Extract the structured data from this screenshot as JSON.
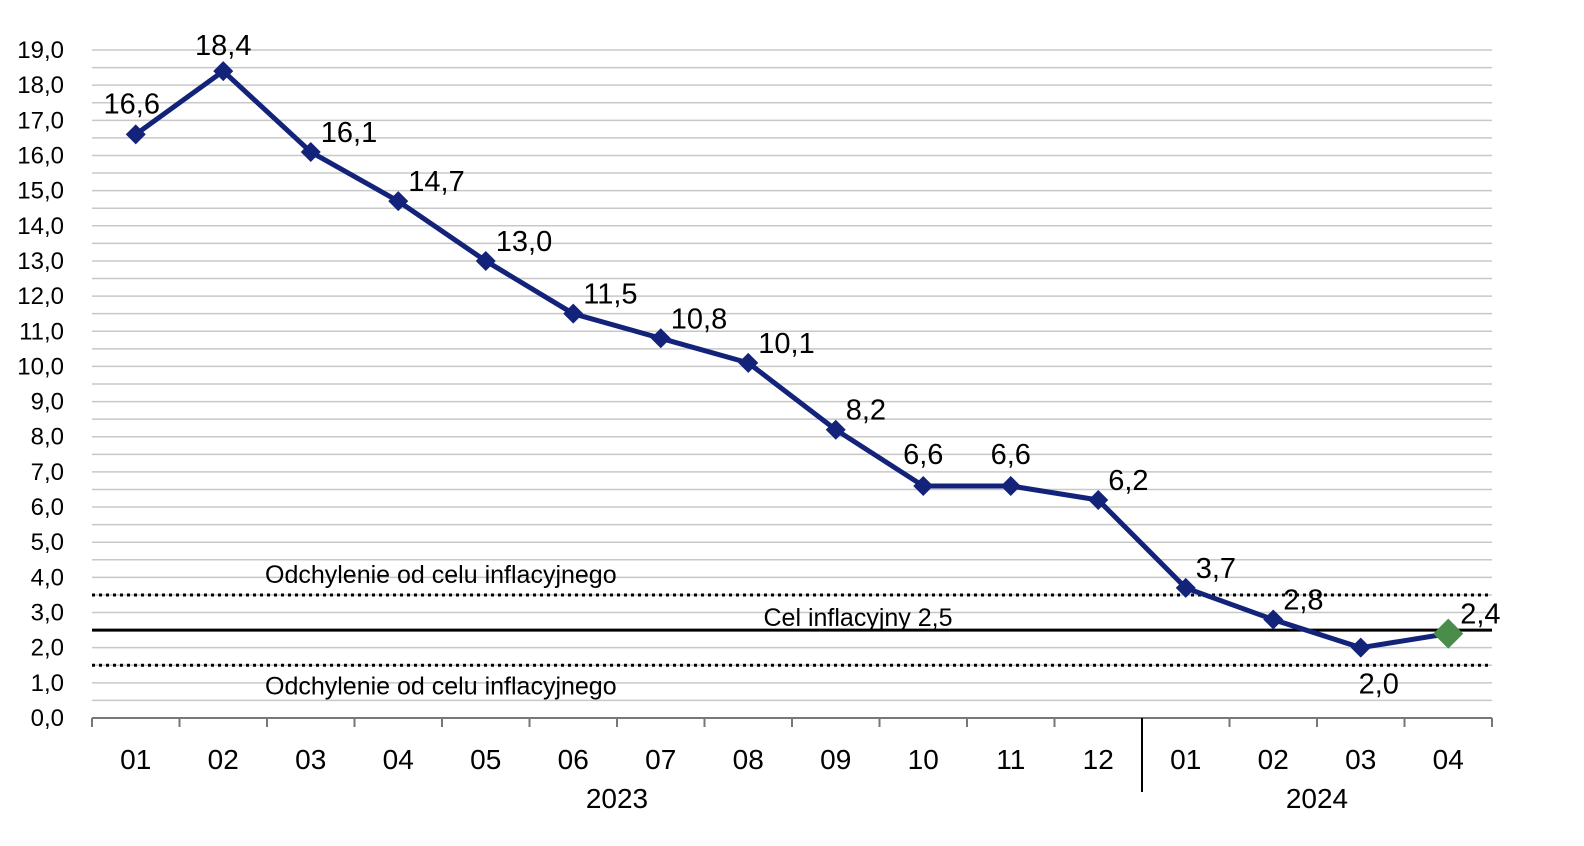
{
  "chart_data": {
    "type": "line",
    "x_months": [
      "01",
      "02",
      "03",
      "04",
      "05",
      "06",
      "07",
      "08",
      "09",
      "10",
      "11",
      "12",
      "01",
      "02",
      "03",
      "04"
    ],
    "x_years": [
      {
        "label": "2023",
        "from": 0,
        "to": 11
      },
      {
        "label": "2024",
        "from": 12,
        "to": 15
      }
    ],
    "values": [
      16.6,
      18.4,
      16.1,
      14.7,
      13.0,
      11.5,
      10.8,
      10.1,
      8.2,
      6.6,
      6.6,
      6.2,
      3.7,
      2.8,
      2.0,
      2.4
    ],
    "value_labels": [
      "16,6",
      "18,4",
      "16,1",
      "14,7",
      "13,0",
      "11,5",
      "10,8",
      "10,1",
      "8,2",
      "6,6",
      "6,6",
      "6,2",
      "3,7",
      "2,8",
      "2,0",
      "2,4"
    ],
    "ylim": [
      0,
      19
    ],
    "y_ticks": [
      "0,0",
      "1,0",
      "2,0",
      "3,0",
      "4,0",
      "5,0",
      "6,0",
      "7,0",
      "8,0",
      "9,0",
      "10,0",
      "11,0",
      "12,0",
      "13,0",
      "14,0",
      "15,0",
      "16,0",
      "17,0",
      "18,0",
      "19,0"
    ],
    "grid": true,
    "line_color": "#13237a",
    "last_point_color": "#4a8c4a",
    "reference_lines": [
      {
        "value": 3.5,
        "style": "dotted",
        "label": "Odchylenie od celu inflacyjnego"
      },
      {
        "value": 2.5,
        "style": "solid",
        "label": "Cel inflacyjny 2,5"
      },
      {
        "value": 1.5,
        "style": "dotted",
        "label": "Odchylenie od celu inflacyjnego"
      }
    ]
  }
}
